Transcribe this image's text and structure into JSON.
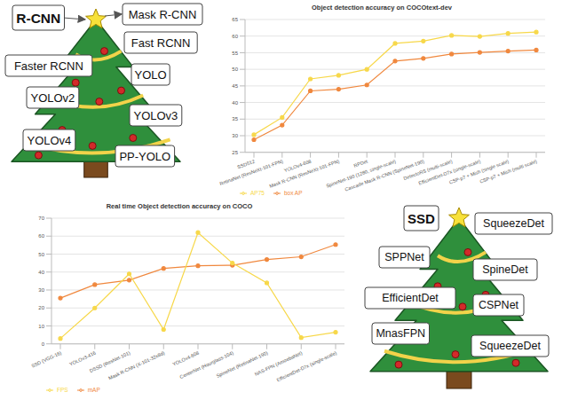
{
  "chart_data": [
    {
      "type": "line",
      "title": "Object detection accuracy on COCOtext-dev",
      "categories": [
        "SSD512",
        "RetinaNet (ResNeXt-101-FPN)",
        "YOLOv4-608",
        "Mask R-CNN (ResNeXt-101-FPN)",
        "RPDet",
        "SpineNet-190 (1280, single-scale)",
        "Cascade Mask R-CNN (SpineNet-190)",
        "DetectoRS (multi-scale)",
        "EfficientDet-D7x (single-scale)",
        "CSP-p7 + Mish (single scale)",
        "CSP-p7 + Mish (multi scale)"
      ],
      "series": [
        {
          "name": "box AP",
          "color": "#f0883e",
          "values": [
            28.8,
            33.2,
            43.5,
            44,
            45.3,
            52.5,
            53.3,
            54.6,
            55.1,
            55.5,
            55.8
          ]
        },
        {
          "name": "AP75",
          "color": "#f7d84a",
          "values": [
            30.3,
            35.5,
            47.1,
            48.2,
            50,
            57.8,
            58.5,
            60.2,
            59.9,
            60.8,
            61.2
          ]
        }
      ],
      "ylim": [
        25,
        65
      ],
      "yticks": [
        25,
        30,
        35,
        40,
        45,
        50,
        55,
        60,
        65
      ],
      "grid": true,
      "legend": "bottom-left",
      "marker": "circle"
    },
    {
      "type": "line",
      "title": "Real time Object detection accuracy on COCO",
      "categories": [
        "SSD (VGG-16)",
        "YOLOv3-416",
        "DSSD (ResNet-101)",
        "Mask R-CNN (X-101-32x8d)",
        "YOLOv4-608",
        "CenterNet (Hourglass-104)",
        "SpineNet (RetinaNet-190)",
        "NAS-FPN (AmoebaNet)",
        "EfficientDet-D7x (single-scale)"
      ],
      "series": [
        {
          "name": "mAP",
          "color": "#f0883e",
          "values": [
            25.5,
            33,
            35.5,
            42,
            43.5,
            43.8,
            47,
            48.5,
            55.3
          ]
        },
        {
          "name": "FPS",
          "color": "#f7d84a",
          "values": [
            3,
            20,
            39,
            8,
            62,
            45,
            34,
            3.5,
            6.5
          ]
        }
      ],
      "ylim": [
        0,
        70
      ],
      "yticks": [
        0,
        10,
        20,
        30,
        40,
        50,
        60,
        70
      ],
      "grid": true,
      "legend": "bottom-left",
      "marker": "circle"
    }
  ],
  "diagrams": [
    {
      "nodes": [
        {
          "label": "R-CNN"
        },
        {
          "label": "Mask R-CNN"
        },
        {
          "label": "Fast RCNN"
        },
        {
          "label": "Faster RCNN"
        },
        {
          "label": "YOLO"
        },
        {
          "label": "YOLOv2"
        },
        {
          "label": "YOLOv3"
        },
        {
          "label": "YOLOv4"
        },
        {
          "label": "PP-YOLO"
        }
      ]
    },
    {
      "nodes": [
        {
          "label": "SSD"
        },
        {
          "label": "SqueezeDet"
        },
        {
          "label": "SPPNet"
        },
        {
          "label": "SpineDet"
        },
        {
          "label": "EfficientDet"
        },
        {
          "label": "CSPNet"
        },
        {
          "label": "MnasFPN"
        },
        {
          "label": "SqueezeDet"
        }
      ]
    }
  ]
}
